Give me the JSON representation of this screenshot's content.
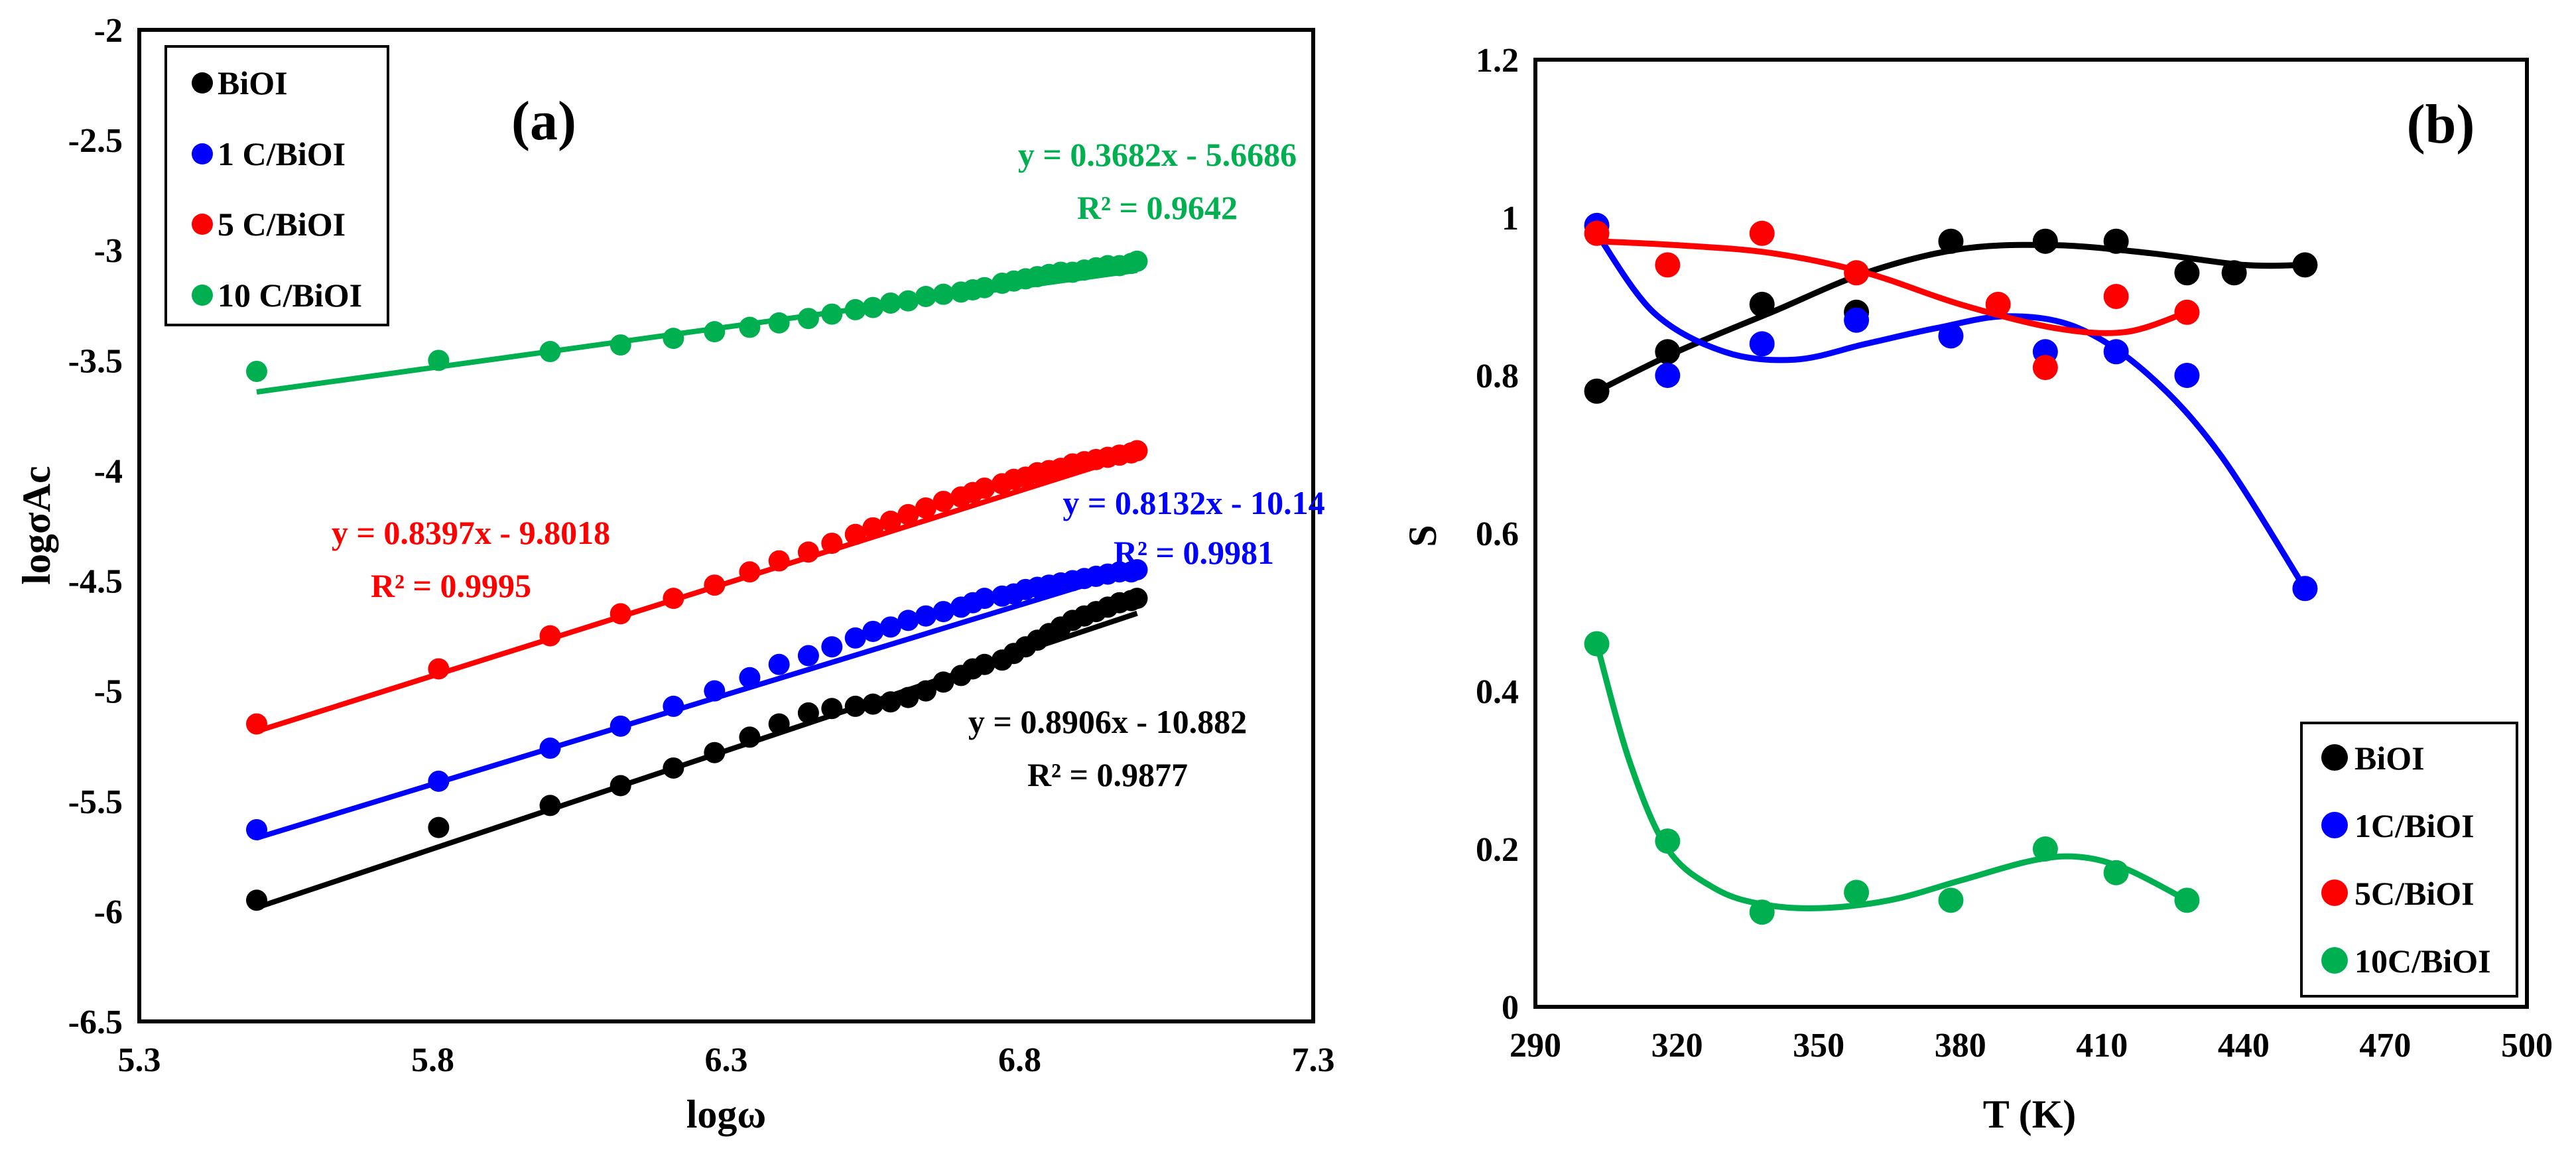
{
  "chart_data": [
    {
      "panel": "(a)",
      "type": "scatter",
      "xlabel": "logω",
      "ylabel": "logσAc",
      "xlim": [
        5.3,
        7.3
      ],
      "ylim": [
        -6.5,
        -2
      ],
      "xticks": [
        "5.3",
        "5.8",
        "6.3",
        "6.8",
        "7.3"
      ],
      "yticks": [
        "-2",
        "-2.5",
        "-3",
        "-3.5",
        "-4",
        "-4.5",
        "-5",
        "-5.5",
        "-6",
        "-6.5"
      ],
      "x": [
        5.5,
        5.81,
        6.0,
        6.12,
        6.21,
        6.28,
        6.34,
        6.39,
        6.44,
        6.48,
        6.52,
        6.55,
        6.58,
        6.61,
        6.64,
        6.67,
        6.7,
        6.72,
        6.74,
        6.77,
        6.79,
        6.81,
        6.83,
        6.85,
        6.87,
        6.89,
        6.91,
        6.93,
        6.95,
        6.97,
        6.99,
        7.0
      ],
      "series": [
        {
          "name": "BiOI",
          "color": "#000000",
          "values": [
            -5.95,
            -5.62,
            -5.52,
            -5.43,
            -5.35,
            -5.28,
            -5.21,
            -5.15,
            -5.1,
            -5.08,
            -5.07,
            -5.06,
            -5.05,
            -5.03,
            -5.0,
            -4.96,
            -4.93,
            -4.9,
            -4.88,
            -4.86,
            -4.83,
            -4.8,
            -4.77,
            -4.74,
            -4.71,
            -4.68,
            -4.66,
            -4.64,
            -4.62,
            -4.6,
            -4.59,
            -4.58
          ],
          "equation": "y = 0.8906x - 10.882",
          "r2": "R² = 0.9877",
          "slope": 0.8906,
          "intercept": -10.882
        },
        {
          "name": "1 C/BiOI",
          "color": "#0000ff",
          "values": [
            -5.63,
            -5.41,
            -5.26,
            -5.16,
            -5.07,
            -5.0,
            -4.94,
            -4.88,
            -4.84,
            -4.8,
            -4.76,
            -4.73,
            -4.71,
            -4.68,
            -4.66,
            -4.64,
            -4.62,
            -4.6,
            -4.58,
            -4.57,
            -4.56,
            -4.54,
            -4.53,
            -4.52,
            -4.51,
            -4.5,
            -4.49,
            -4.48,
            -4.47,
            -4.46,
            -4.46,
            -4.45
          ],
          "equation": "y = 0.8132x - 10.14",
          "r2": "R² = 0.9981",
          "slope": 0.8132,
          "intercept": -10.14
        },
        {
          "name": "5 C/BiOI",
          "color": "#ff0000",
          "values": [
            -5.15,
            -4.9,
            -4.75,
            -4.65,
            -4.58,
            -4.52,
            -4.46,
            -4.41,
            -4.37,
            -4.33,
            -4.29,
            -4.26,
            -4.23,
            -4.2,
            -4.17,
            -4.14,
            -4.12,
            -4.1,
            -4.08,
            -4.06,
            -4.04,
            -4.03,
            -4.01,
            -4.0,
            -3.99,
            -3.97,
            -3.96,
            -3.95,
            -3.94,
            -3.93,
            -3.92,
            -3.91
          ],
          "equation": "y = 0.8397x - 9.8018",
          "r2": "R² = 0.9995",
          "slope": 0.8397,
          "intercept": -9.8018
        },
        {
          "name": "10 C/BiOI",
          "color": "#00b050",
          "values": [
            -3.55,
            -3.5,
            -3.46,
            -3.43,
            -3.4,
            -3.37,
            -3.35,
            -3.33,
            -3.31,
            -3.29,
            -3.27,
            -3.26,
            -3.24,
            -3.23,
            -3.21,
            -3.2,
            -3.19,
            -3.18,
            -3.17,
            -3.15,
            -3.14,
            -3.13,
            -3.12,
            -3.11,
            -3.1,
            -3.1,
            -3.09,
            -3.08,
            -3.07,
            -3.07,
            -3.06,
            -3.05
          ],
          "equation": "y = 0.3682x - 5.6686",
          "r2": "R² = 0.9642",
          "slope": 0.3682,
          "intercept": -5.6686
        }
      ],
      "legend_position": "top-left"
    },
    {
      "panel": "(b)",
      "type": "scatter",
      "xlabel": "T (K)",
      "ylabel": "S",
      "xlim": [
        290,
        500
      ],
      "ylim": [
        0,
        1.2
      ],
      "xticks": [
        "290",
        "320",
        "350",
        "380",
        "410",
        "440",
        "470",
        "500"
      ],
      "yticks": [
        "0",
        "0.2",
        "0.4",
        "0.6",
        "0.8",
        "1",
        "1.2"
      ],
      "series": [
        {
          "name": "BiOI",
          "color": "#000000",
          "x": [
            303,
            318,
            338,
            358,
            378,
            398,
            413,
            428,
            438,
            453
          ],
          "values": [
            0.78,
            0.83,
            0.89,
            0.88,
            0.97,
            0.97,
            0.97,
            0.93,
            0.93,
            0.94
          ],
          "fit_x": [
            303,
            320,
            340,
            360,
            380,
            400,
            420,
            440,
            453
          ],
          "fit": [
            0.78,
            0.83,
            0.88,
            0.93,
            0.96,
            0.965,
            0.955,
            0.94,
            0.94
          ]
        },
        {
          "name": "1C/BiOI",
          "color": "#0000ff",
          "x": [
            303,
            318,
            338,
            358,
            378,
            398,
            413,
            428,
            453
          ],
          "values": [
            0.99,
            0.8,
            0.84,
            0.87,
            0.85,
            0.83,
            0.83,
            0.8,
            0.53
          ],
          "fit_x": [
            303,
            315,
            330,
            345,
            360,
            375,
            390,
            405,
            420,
            435,
            453
          ],
          "fit": [
            0.98,
            0.88,
            0.83,
            0.82,
            0.84,
            0.86,
            0.875,
            0.86,
            0.8,
            0.7,
            0.53
          ]
        },
        {
          "name": "5C/BiOI",
          "color": "#ff0000",
          "x": [
            303,
            318,
            338,
            358,
            388,
            398,
            413,
            428
          ],
          "values": [
            0.98,
            0.94,
            0.98,
            0.93,
            0.89,
            0.81,
            0.9,
            0.88
          ],
          "fit_x": [
            303,
            320,
            340,
            360,
            380,
            400,
            415,
            428
          ],
          "fit": [
            0.97,
            0.965,
            0.955,
            0.93,
            0.89,
            0.86,
            0.855,
            0.88
          ]
        },
        {
          "name": "10C/BiOI",
          "color": "#00b050",
          "x": [
            303,
            318,
            338,
            358,
            378,
            398,
            413,
            428
          ],
          "values": [
            0.46,
            0.21,
            0.12,
            0.145,
            0.135,
            0.2,
            0.17,
            0.135
          ],
          "fit_x": [
            303,
            310,
            318,
            328,
            338,
            350,
            365,
            380,
            395,
            405,
            415,
            428
          ],
          "fit": [
            0.46,
            0.31,
            0.2,
            0.15,
            0.13,
            0.125,
            0.135,
            0.16,
            0.185,
            0.19,
            0.175,
            0.135
          ]
        }
      ],
      "legend_position": "bottom-right"
    }
  ]
}
